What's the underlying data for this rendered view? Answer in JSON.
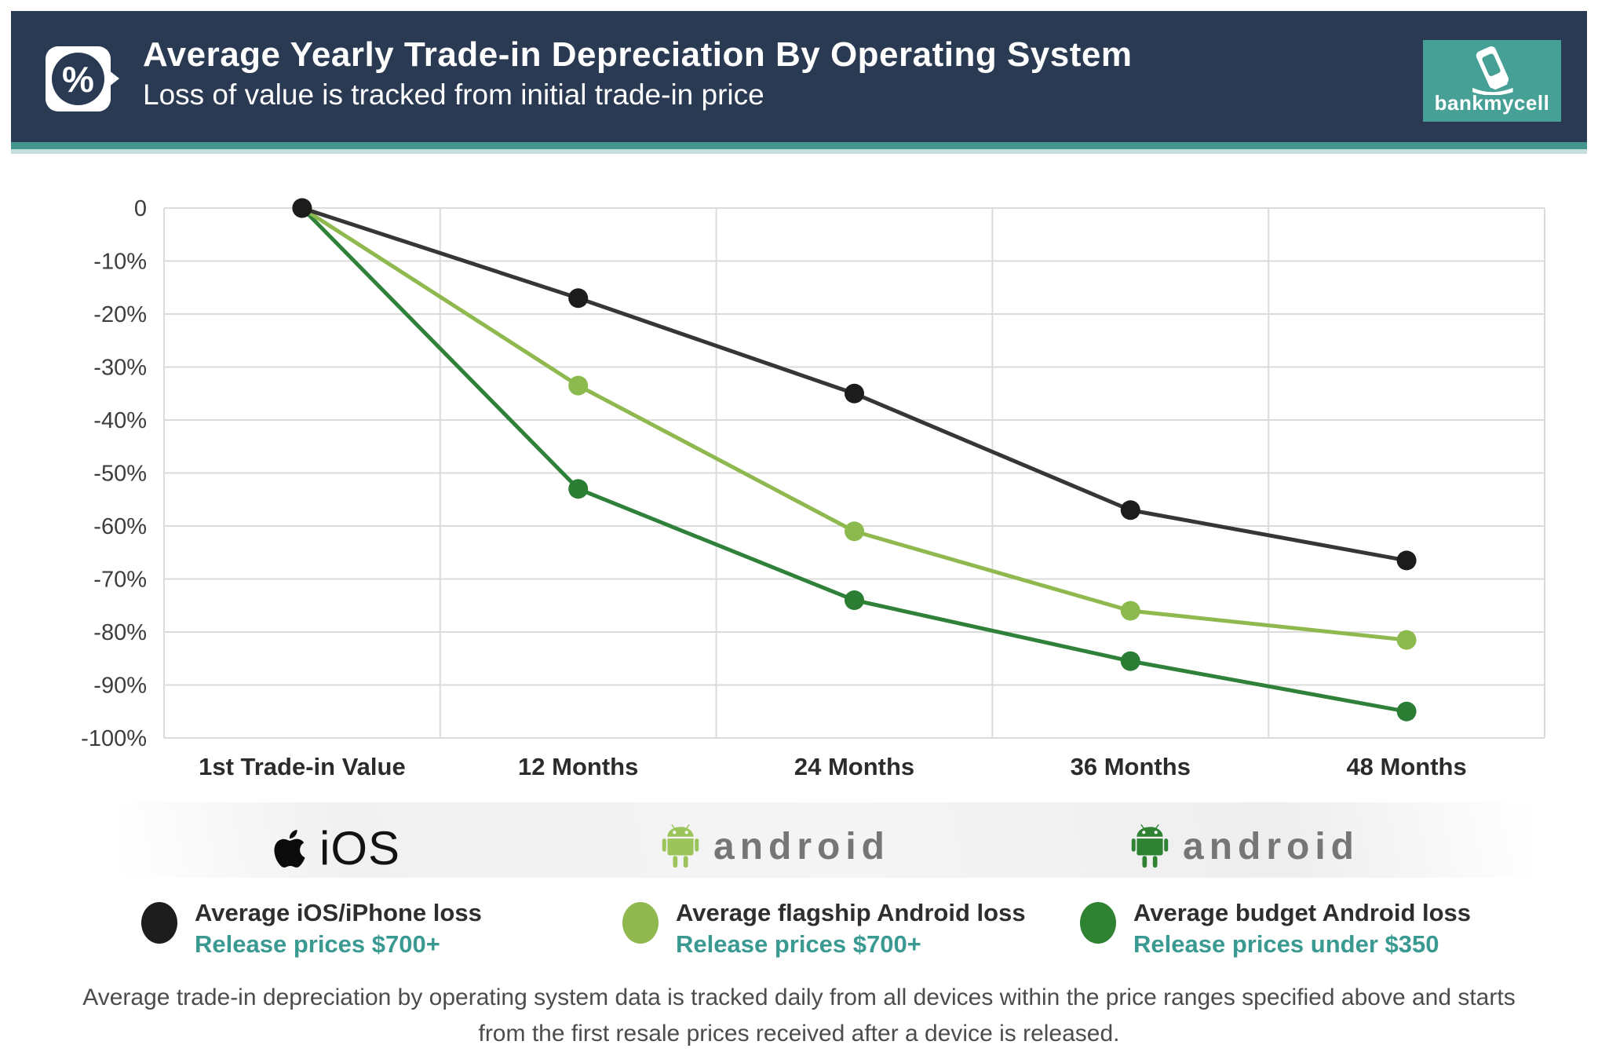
{
  "header": {
    "title": "Average Yearly Trade-in Depreciation By Operating System",
    "subtitle": "Loss of value is tracked from initial trade-in price",
    "badge_symbol": "%",
    "bg_color": "#293A52",
    "accent_color": "#43958D"
  },
  "brand": {
    "name": "bankmycell",
    "box_color": "#47A095"
  },
  "chart_data": {
    "type": "line",
    "categories": [
      "1st Trade-in Value",
      "12 Months",
      "24 Months",
      "36 Months",
      "48 Months"
    ],
    "series": [
      {
        "name": "Average iOS/iPhone loss",
        "color": "#363636",
        "marker_color": "#1c1c1c",
        "values": [
          0,
          -17,
          -35,
          -57,
          -66.5
        ]
      },
      {
        "name": "Average flagship Android loss",
        "color": "#8FB94F",
        "marker_color": "#8CBA4E",
        "values": [
          0,
          -33.5,
          -61,
          -76,
          -81.5
        ]
      },
      {
        "name": "Average budget Android loss",
        "color": "#2F8139",
        "marker_color": "#2B7D33",
        "values": [
          0,
          -53,
          -74,
          -85.5,
          -95
        ]
      }
    ],
    "ylim": [
      -100,
      0
    ],
    "ytick_step": 10,
    "ytick_labels": [
      "0",
      "-10%",
      "-20%",
      "-30%",
      "-40%",
      "-50%",
      "-60%",
      "-70%",
      "-80%",
      "-90%",
      "-100%"
    ],
    "grid": true,
    "grid_color": "#DBDBDB",
    "tick_color": "#3d3d3d",
    "xlabel_color": "#2b2b2b",
    "legend_position": "bottom"
  },
  "os_logos": {
    "ios": {
      "label": "iOS",
      "apple_color": "#0b0b0b"
    },
    "flagship_android": {
      "label": "android",
      "robot_color": "#9BC45A",
      "wordmark_color": "#767676"
    },
    "budget_android": {
      "label": "android",
      "robot_color": "#2E8232",
      "wordmark_color": "#767676"
    }
  },
  "legend": {
    "items": [
      {
        "name": "Average iOS/iPhone loss",
        "sub": "Release prices $700+",
        "dot_color": "#1d1d1d"
      },
      {
        "name": "Average flagship Android loss",
        "sub": "Release prices $700+",
        "dot_color": "#8FB94F"
      },
      {
        "name": "Average budget Android loss",
        "sub": "Release prices under $350",
        "dot_color": "#2E8232"
      }
    ],
    "sub_color": "#3A9A92"
  },
  "footer": {
    "text": "Average trade-in depreciation by operating system data is tracked daily from all devices within the price ranges specified above and starts from the first resale prices received after a device is released."
  }
}
